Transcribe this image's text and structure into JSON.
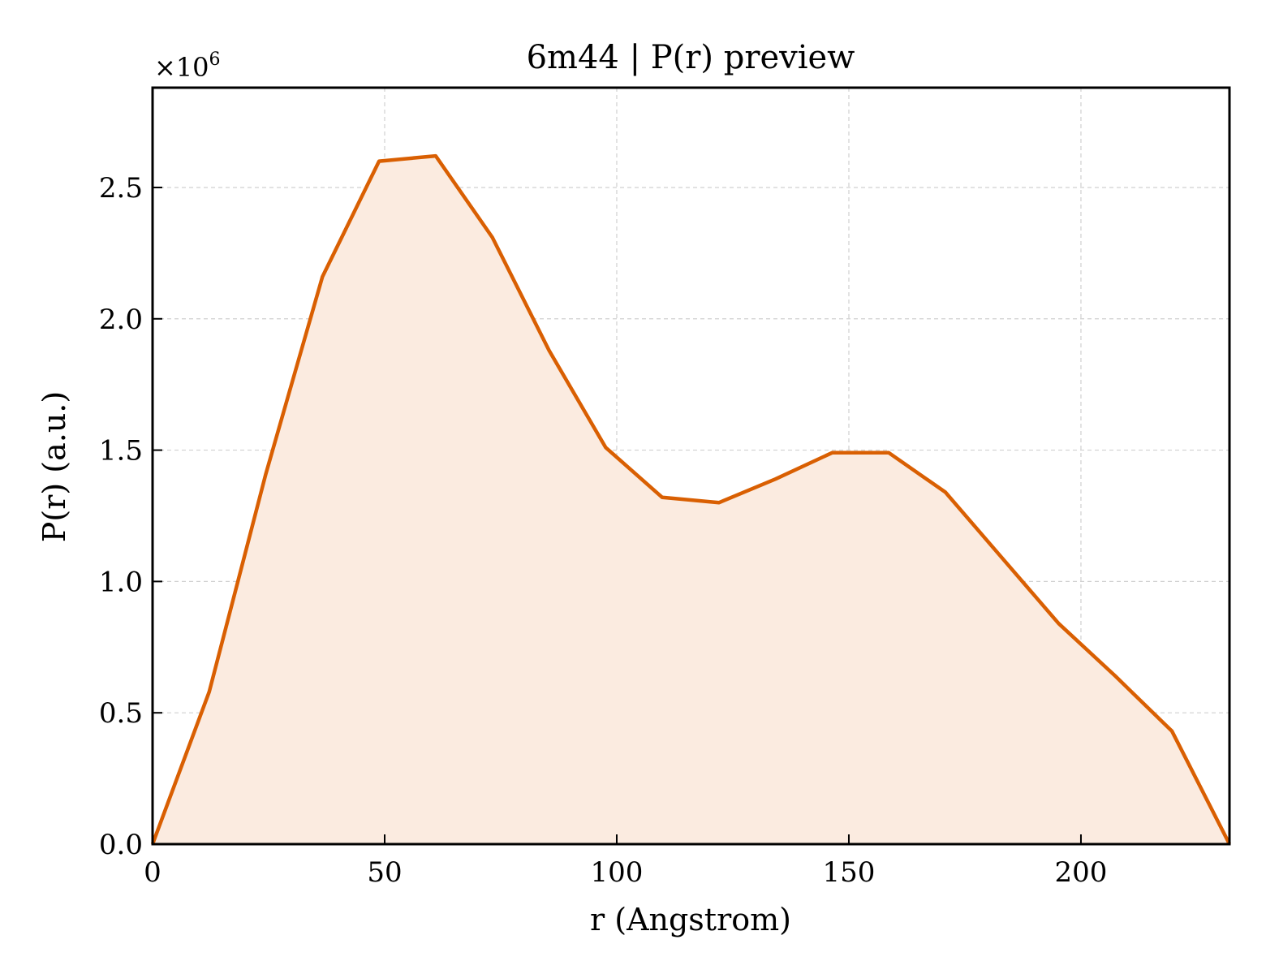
{
  "chart_data": {
    "type": "area",
    "title": "6m44 | P(r) preview",
    "xlabel": "r (Angstrom)",
    "ylabel": "P(r) (a.u.)",
    "y_multiplier_label": "×10",
    "y_multiplier_exponent": "6",
    "xlim": [
      0,
      232
    ],
    "ylim": [
      0,
      2.88
    ],
    "x_ticks": [
      0,
      50,
      100,
      150,
      200
    ],
    "x_tick_labels": [
      "0",
      "50",
      "100",
      "150",
      "200"
    ],
    "y_ticks": [
      0,
      0.5,
      1.0,
      1.5,
      2.0,
      2.5
    ],
    "y_tick_labels": [
      "0.0",
      "0.5",
      "1.0",
      "1.5",
      "2.0",
      "2.5"
    ],
    "grid": true,
    "colors": {
      "line": "#d95f02",
      "fill": "#fbebe0"
    },
    "series": [
      {
        "x": [
          0,
          12.2,
          24.4,
          36.6,
          48.8,
          61.0,
          73.2,
          85.4,
          97.6,
          109.8,
          122.0,
          134.2,
          146.4,
          158.6,
          170.8,
          183.0,
          195.2,
          207.4,
          219.6,
          232.0
        ],
        "y": [
          0.0,
          0.58,
          1.41,
          2.16,
          2.6,
          2.62,
          2.31,
          1.88,
          1.51,
          1.32,
          1.3,
          1.39,
          1.49,
          1.49,
          1.34,
          1.09,
          0.84,
          0.64,
          0.43,
          0.0
        ]
      }
    ]
  }
}
